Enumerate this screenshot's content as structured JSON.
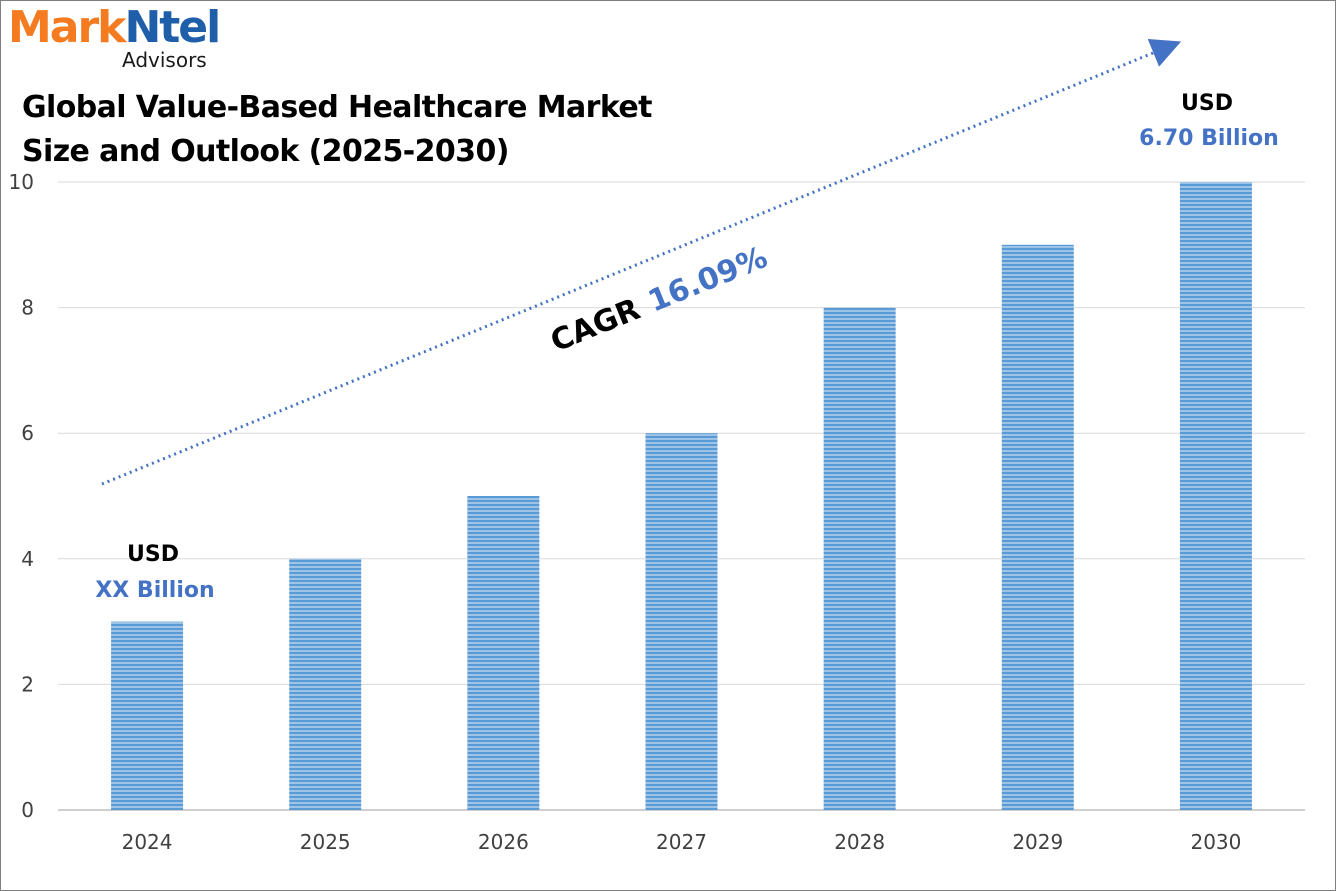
{
  "brand": {
    "name_part1": "Mark",
    "name_part2": "Ntel",
    "tagline": "Advisors"
  },
  "chart_data": {
    "type": "bar",
    "title_line1": "Global Value-Based Healthcare Market",
    "title_line2": "Size and Outlook (2025-2030)",
    "categories": [
      "2024",
      "2025",
      "2026",
      "2027",
      "2028",
      "2029",
      "2030"
    ],
    "values": [
      3,
      4,
      5,
      6,
      8,
      9,
      10
    ],
    "ylim": [
      0,
      10
    ],
    "yticks": [
      0,
      2,
      4,
      6,
      8,
      10
    ],
    "grid": true,
    "legend": "none",
    "bar_color": "#5b9bd5",
    "annotations": {
      "start": {
        "prefix": "USD",
        "value": "XX Billion"
      },
      "end": {
        "prefix": "USD",
        "value": "6.70 Billion"
      },
      "cagr": {
        "label": "CAGR",
        "value": "16.09%"
      }
    }
  }
}
